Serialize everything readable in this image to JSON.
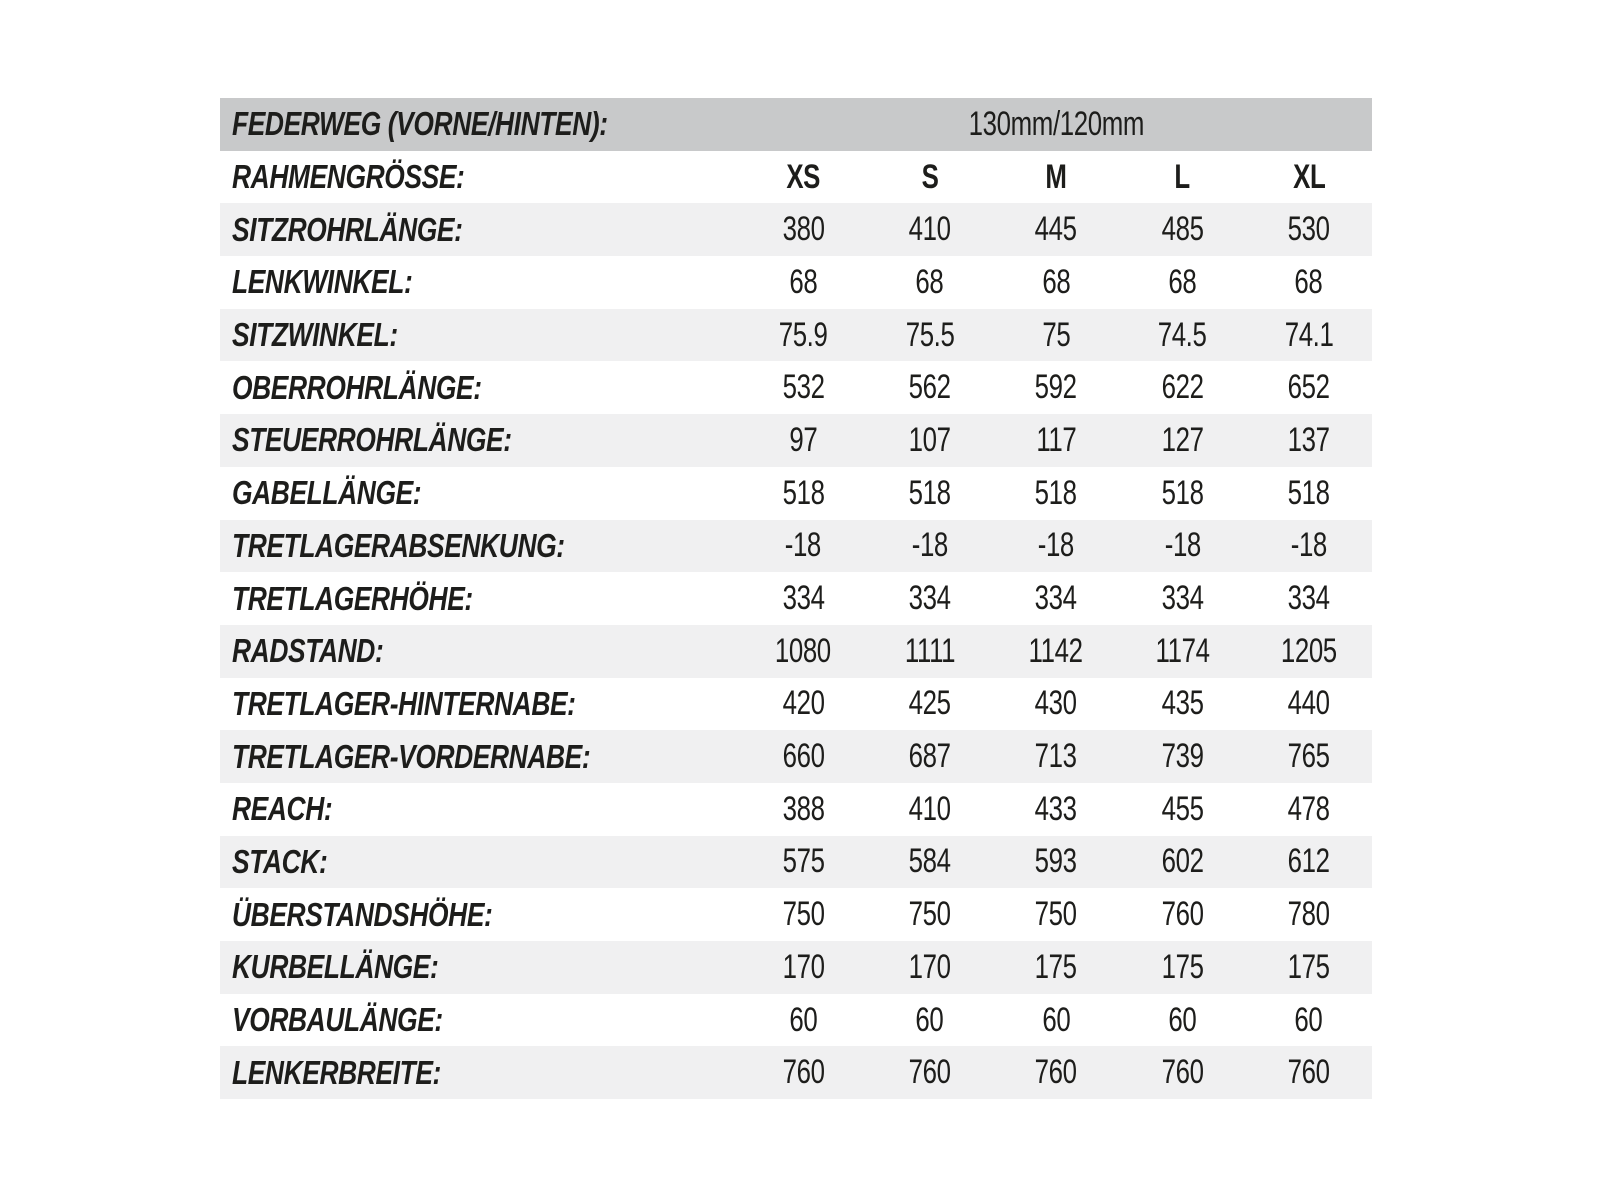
{
  "chart_data": {
    "type": "table",
    "title": "Bike frame geometry table (German)",
    "travel_row": {
      "label": "FEDERWEG (VORNE/HINTEN):",
      "value": "130mm/120mm"
    },
    "size_row": {
      "label": "RAHMENGRÖSSE:",
      "sizes": [
        "XS",
        "S",
        "M",
        "L",
        "XL"
      ]
    },
    "rows": [
      {
        "label": "SITZROHRLÄNGE:",
        "values": [
          "380",
          "410",
          "445",
          "485",
          "530"
        ]
      },
      {
        "label": "LENKWINKEL:",
        "values": [
          "68",
          "68",
          "68",
          "68",
          "68"
        ]
      },
      {
        "label": "SITZWINKEL:",
        "values": [
          "75.9",
          "75.5",
          "75",
          "74.5",
          "74.1"
        ]
      },
      {
        "label": "OBERROHRLÄNGE:",
        "values": [
          "532",
          "562",
          "592",
          "622",
          "652"
        ]
      },
      {
        "label": "STEUERROHRLÄNGE:",
        "values": [
          "97",
          "107",
          "117",
          "127",
          "137"
        ]
      },
      {
        "label": "GABELLÄNGE:",
        "values": [
          "518",
          "518",
          "518",
          "518",
          "518"
        ]
      },
      {
        "label": "TRETLAGERABSENKUNG:",
        "values": [
          "-18",
          "-18",
          "-18",
          "-18",
          "-18"
        ]
      },
      {
        "label": "TRETLAGERHÖHE:",
        "values": [
          "334",
          "334",
          "334",
          "334",
          "334"
        ]
      },
      {
        "label": "RADSTAND:",
        "values": [
          "1080",
          "1111",
          "1142",
          "1174",
          "1205"
        ]
      },
      {
        "label": "TRETLAGER-HINTERNABE:",
        "values": [
          "420",
          "425",
          "430",
          "435",
          "440"
        ]
      },
      {
        "label": "TRETLAGER-VORDERNABE:",
        "values": [
          "660",
          "687",
          "713",
          "739",
          "765"
        ]
      },
      {
        "label": "REACH:",
        "values": [
          "388",
          "410",
          "433",
          "455",
          "478"
        ]
      },
      {
        "label": "STACK:",
        "values": [
          "575",
          "584",
          "593",
          "602",
          "612"
        ]
      },
      {
        "label": "ÜBERSTANDSHÖHE:",
        "values": [
          "750",
          "750",
          "750",
          "760",
          "780"
        ]
      },
      {
        "label": "KURBELLÄNGE:",
        "values": [
          "170",
          "170",
          "175",
          "175",
          "175"
        ]
      },
      {
        "label": "VORBAULÄNGE:",
        "values": [
          "60",
          "60",
          "60",
          "60",
          "60"
        ]
      },
      {
        "label": "LENKERBREITE:",
        "values": [
          "760",
          "760",
          "760",
          "760",
          "760"
        ]
      }
    ],
    "layout": {
      "columns_count": 5,
      "stripe_starts_with_first_data_row": true
    }
  },
  "colors": {
    "header_bg": "#c8c9ca",
    "stripe_bg": "#f0f0f1",
    "text": "#1d1d1b",
    "page_bg": "#ffffff"
  }
}
